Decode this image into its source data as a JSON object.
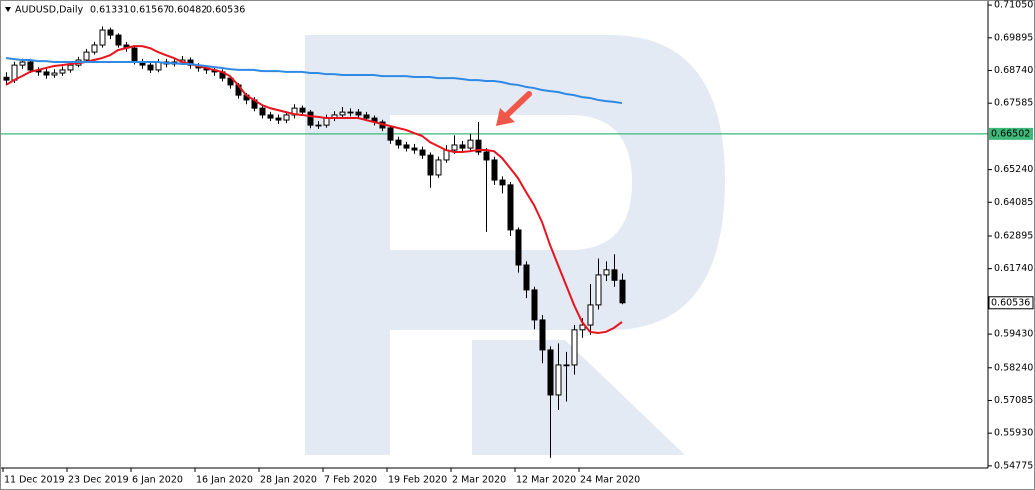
{
  "chart_data": {
    "type": "candlestick",
    "symbol": "AUDUSD,Daily",
    "categories": [
      "11 Dec 2019",
      null,
      null,
      null,
      null,
      null,
      null,
      null,
      "23 Dec 2019",
      null,
      null,
      null,
      null,
      null,
      null,
      null,
      "6 Jan 2020",
      null,
      null,
      null,
      null,
      null,
      null,
      null,
      "16 Jan 2020",
      null,
      null,
      null,
      null,
      null,
      null,
      null,
      "28 Jan 2020",
      null,
      null,
      null,
      null,
      null,
      null,
      null,
      "7 Feb 2020",
      null,
      null,
      null,
      null,
      null,
      null,
      null,
      "19 Feb 2020",
      null,
      null,
      null,
      null,
      null,
      null,
      null,
      "2 Mar 2020",
      null,
      null,
      null,
      null,
      null,
      null,
      null,
      "12 Mar 2020",
      null,
      null,
      null,
      null,
      null,
      null,
      null,
      "24 Mar 2020",
      null,
      null,
      null,
      null,
      null
    ],
    "open": [
      0.685,
      0.684,
      0.6893,
      0.6904,
      0.6876,
      0.6869,
      0.6858,
      0.6865,
      0.6876,
      0.6893,
      0.6911,
      0.6939,
      0.6964,
      0.7017,
      0.6999,
      0.6964,
      0.6953,
      0.6904,
      0.6893,
      0.6876,
      0.6904,
      0.6897,
      0.6904,
      0.6911,
      0.6893,
      0.6883,
      0.6876,
      0.6869,
      0.6847,
      0.6823,
      0.6787,
      0.677,
      0.6741,
      0.6717,
      0.6706,
      0.6699,
      0.6717,
      0.6741,
      0.6727,
      0.6681,
      0.6681,
      0.6706,
      0.6717,
      0.6727,
      0.6727,
      0.6717,
      0.6706,
      0.6692,
      0.6671,
      0.6628,
      0.6611,
      0.66,
      0.6593,
      0.6575,
      0.6505,
      0.6558,
      0.6593,
      0.6611,
      0.66,
      0.6628,
      0.6586,
      0.6558,
      0.6487,
      0.647,
      0.6311,
      0.6187,
      0.6099,
      0.5993,
      0.5887,
      0.5728,
      0.5834,
      0.5834,
      0.5958,
      0.5975,
      0.6046,
      0.6152,
      0.617,
      0.61331
    ],
    "high": [
      0.6868,
      0.6905,
      0.6915,
      0.6915,
      0.6885,
      0.688,
      0.6878,
      0.6888,
      0.6905,
      0.6922,
      0.695,
      0.6975,
      0.703,
      0.7025,
      0.7005,
      0.6975,
      0.696,
      0.6915,
      0.6902,
      0.6915,
      0.6915,
      0.6918,
      0.6925,
      0.692,
      0.69,
      0.6892,
      0.6888,
      0.6878,
      0.6855,
      0.683,
      0.6795,
      0.678,
      0.6752,
      0.6728,
      0.6718,
      0.673,
      0.6755,
      0.675,
      0.6735,
      0.6695,
      0.6718,
      0.673,
      0.6745,
      0.674,
      0.6738,
      0.6728,
      0.6715,
      0.67,
      0.668,
      0.664,
      0.6622,
      0.6615,
      0.6605,
      0.6585,
      0.657,
      0.661,
      0.6645,
      0.6625,
      0.665,
      0.6692,
      0.66,
      0.657,
      0.65,
      0.648,
      0.632,
      0.62,
      0.611,
      0.601,
      0.59,
      0.591,
      0.588,
      0.5975,
      0.6,
      0.612,
      0.621,
      0.62,
      0.6225,
      0.61567
    ],
    "low": [
      0.6825,
      0.683,
      0.688,
      0.6865,
      0.6855,
      0.6845,
      0.6848,
      0.6855,
      0.6866,
      0.6885,
      0.6903,
      0.693,
      0.6955,
      0.6985,
      0.6955,
      0.694,
      0.6895,
      0.688,
      0.6865,
      0.6868,
      0.6885,
      0.6888,
      0.6895,
      0.688,
      0.687,
      0.6862,
      0.6855,
      0.6835,
      0.681,
      0.6775,
      0.6755,
      0.673,
      0.6705,
      0.6695,
      0.6685,
      0.6688,
      0.6705,
      0.6715,
      0.667,
      0.6668,
      0.6672,
      0.6695,
      0.6705,
      0.6712,
      0.6705,
      0.6695,
      0.668,
      0.666,
      0.6615,
      0.6598,
      0.6588,
      0.658,
      0.6562,
      0.646,
      0.6495,
      0.6548,
      0.658,
      0.6588,
      0.659,
      0.6575,
      0.6304,
      0.647,
      0.644,
      0.629,
      0.616,
      0.607,
      0.596,
      0.584,
      0.5506,
      0.5675,
      0.5705,
      0.58,
      0.593,
      0.594,
      0.603,
      0.613,
      0.611,
      0.60482
    ],
    "close": [
      0.684,
      0.6893,
      0.6904,
      0.6876,
      0.6869,
      0.6858,
      0.6865,
      0.6876,
      0.6893,
      0.6911,
      0.6939,
      0.6964,
      0.7017,
      0.6999,
      0.6964,
      0.6953,
      0.6904,
      0.6893,
      0.6876,
      0.6904,
      0.6897,
      0.6904,
      0.6911,
      0.6893,
      0.6883,
      0.6876,
      0.6869,
      0.6847,
      0.6823,
      0.6787,
      0.677,
      0.6741,
      0.6717,
      0.6706,
      0.6699,
      0.6717,
      0.6741,
      0.6727,
      0.6681,
      0.6681,
      0.6706,
      0.6717,
      0.6727,
      0.6727,
      0.6717,
      0.6706,
      0.6692,
      0.6671,
      0.6628,
      0.6611,
      0.66,
      0.6593,
      0.6575,
      0.6505,
      0.6558,
      0.6593,
      0.6611,
      0.66,
      0.6628,
      0.6586,
      0.6558,
      0.6487,
      0.647,
      0.6311,
      0.6187,
      0.6099,
      0.5993,
      0.5887,
      0.5728,
      0.5834,
      0.5834,
      0.5958,
      0.5975,
      0.6046,
      0.6152,
      0.617,
      0.6133,
      0.60536
    ],
    "up_color": "#ffffff",
    "down_color": "#000000",
    "candle_outline": "#000000",
    "lines": [
      {
        "color": "#e8141e",
        "values": [
          0.6823,
          0.684,
          0.6854,
          0.6869,
          0.6876,
          0.6883,
          0.689,
          0.6893,
          0.6897,
          0.69,
          0.6904,
          0.6911,
          0.6918,
          0.6928,
          0.6946,
          0.6953,
          0.696,
          0.696,
          0.6953,
          0.6939,
          0.6928,
          0.6918,
          0.6904,
          0.6897,
          0.689,
          0.6883,
          0.6876,
          0.6869,
          0.6854,
          0.6823,
          0.6787,
          0.677,
          0.6752,
          0.6741,
          0.6734,
          0.6727,
          0.672,
          0.6717,
          0.6713,
          0.671,
          0.6706,
          0.6706,
          0.6706,
          0.6706,
          0.6706,
          0.6699,
          0.6692,
          0.6685,
          0.6678,
          0.6671,
          0.6664,
          0.6653,
          0.6643,
          0.6621,
          0.6607,
          0.6593,
          0.6586,
          0.6586,
          0.6589,
          0.6593,
          0.6593,
          0.6589,
          0.6565,
          0.653,
          0.6494,
          0.6445,
          0.6399,
          0.6339,
          0.6258,
          0.6187,
          0.6117,
          0.6046,
          0.5986,
          0.5951,
          0.5947,
          0.5951,
          0.5965,
          0.5986
        ]
      },
      {
        "color": "#2f8ae5",
        "values": [
          0.6918,
          0.6914,
          0.6911,
          0.6911,
          0.6907,
          0.6907,
          0.6904,
          0.6904,
          0.6904,
          0.6904,
          0.6904,
          0.6904,
          0.6904,
          0.6904,
          0.6904,
          0.6904,
          0.6904,
          0.6904,
          0.6904,
          0.6904,
          0.69,
          0.69,
          0.6897,
          0.6897,
          0.6893,
          0.689,
          0.6886,
          0.6883,
          0.6879,
          0.6876,
          0.6876,
          0.6876,
          0.6872,
          0.6872,
          0.6872,
          0.6869,
          0.6869,
          0.6869,
          0.6865,
          0.6865,
          0.6861,
          0.6861,
          0.6858,
          0.6858,
          0.6858,
          0.6858,
          0.6858,
          0.6854,
          0.6854,
          0.6854,
          0.6854,
          0.6851,
          0.6851,
          0.6851,
          0.6847,
          0.6847,
          0.6847,
          0.6844,
          0.684,
          0.684,
          0.6837,
          0.6837,
          0.6833,
          0.6826,
          0.6823,
          0.6816,
          0.6812,
          0.6805,
          0.6801,
          0.6798,
          0.6791,
          0.6787,
          0.678,
          0.6777,
          0.677,
          0.6766,
          0.6763,
          0.6759
        ]
      }
    ],
    "level": 0.66502,
    "level_color": "#3cb878",
    "ylim": [
      0.547,
      0.7123
    ],
    "yticks": [
      {
        "value": 0.7105,
        "label": "0.71050"
      },
      0.69895,
      {
        "value": 0.6874,
        "label": "0.68740"
      },
      0.67585,
      {
        "value": 0.6524,
        "label": "0.65240"
      },
      0.64085,
      0.62895,
      {
        "value": 0.6174,
        "label": "0.61740"
      },
      {
        "value": 0.5943,
        "label": "0.59430"
      },
      {
        "value": 0.5824,
        "label": "0.58240"
      },
      0.57085,
      {
        "value": 0.5593,
        "label": "0.55930"
      },
      0.54775
    ]
  }
}
